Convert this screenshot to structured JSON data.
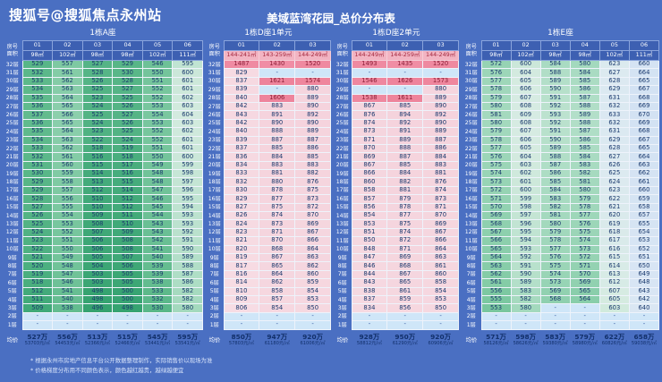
{
  "page": {
    "brand": "搜狐号@搜狐焦点永州站",
    "title": "美域蓝湾花园_总价分布表"
  },
  "notes": [
    "* 根据永州市房地产信息平台公开数据整理制作，实际销售价以现场为准",
    "* 价格梯度分布用不同颜色表示，颜色越红越贵，越绿越便宜"
  ],
  "shared": {
    "corner_top": "房号",
    "corner_bottom": "面积",
    "avg_label": "均价",
    "unit_note": "单位：万元",
    "floors": [
      "32层",
      "31层",
      "30层",
      "29层",
      "28层",
      "27层",
      "26层",
      "25层",
      "24层",
      "23层",
      "22层",
      "21层",
      "20层",
      "19层",
      "18层",
      "17层",
      "16层",
      "15层",
      "14层",
      "13层",
      "12层",
      "11层",
      "10层",
      "9层",
      "8层",
      "7层",
      "6层",
      "5层",
      "4层",
      "3层",
      "2层",
      "1层"
    ]
  },
  "style": {
    "page_bg": "#4a6fc2",
    "header_bg": "#3d60b2",
    "dash_bg": "#cfe6f8",
    "navy_text": "#1b3a6e",
    "red_text": "#8c2038",
    "red_text_min": 1400,
    "area_pink_bg": "#f2b4c2",
    "area_pink_text": "#a3273f",
    "color_scale": [
      [
        490,
        "#2f9f6b"
      ],
      [
        515,
        "#46ac7c"
      ],
      [
        535,
        "#5fba8c"
      ],
      [
        560,
        "#82cba5"
      ],
      [
        585,
        "#abdcc3"
      ],
      [
        605,
        "#d5ebe0"
      ],
      [
        625,
        "#dceaf0"
      ],
      [
        645,
        "#d9e6f4"
      ],
      [
        680,
        "#d0e0f2"
      ],
      [
        800,
        "#f7dde4"
      ],
      [
        960,
        "#f3ccd7"
      ],
      [
        1420,
        "#f08ea5"
      ],
      [
        1660,
        "#ee8199"
      ]
    ]
  },
  "chart_data": [
    {
      "type": "table",
      "title": "1栋A座",
      "area_pink": false,
      "columns": [
        [
          "01",
          "98㎡"
        ],
        [
          "02",
          "102㎡"
        ],
        [
          "03",
          "98㎡"
        ],
        [
          "04",
          "98㎡"
        ],
        [
          "05",
          "102㎡"
        ],
        [
          "06",
          "111㎡"
        ]
      ],
      "rows": [
        [
          "529",
          "557",
          "527",
          "529",
          "546",
          "595"
        ],
        [
          "532",
          "561",
          "528",
          "530",
          "550",
          "600"
        ],
        [
          "533",
          "562",
          "526",
          "528",
          "551",
          "601"
        ],
        [
          "534",
          "563",
          "525",
          "527",
          "552",
          "601"
        ],
        [
          "535",
          "564",
          "523",
          "525",
          "552",
          "602"
        ],
        [
          "536",
          "565",
          "524",
          "526",
          "553",
          "603"
        ],
        [
          "537",
          "566",
          "525",
          "527",
          "554",
          "604"
        ],
        [
          "536",
          "565",
          "524",
          "526",
          "553",
          "603"
        ],
        [
          "535",
          "564",
          "523",
          "525",
          "552",
          "602"
        ],
        [
          "534",
          "563",
          "522",
          "524",
          "552",
          "601"
        ],
        [
          "533",
          "562",
          "518",
          "519",
          "551",
          "601"
        ],
        [
          "532",
          "561",
          "516",
          "518",
          "550",
          "600"
        ],
        [
          "531",
          "560",
          "515",
          "517",
          "549",
          "599"
        ],
        [
          "530",
          "559",
          "514",
          "516",
          "548",
          "598"
        ],
        [
          "529",
          "558",
          "513",
          "515",
          "548",
          "597"
        ],
        [
          "529",
          "557",
          "512",
          "514",
          "547",
          "596"
        ],
        [
          "528",
          "556",
          "510",
          "512",
          "546",
          "595"
        ],
        [
          "527",
          "555",
          "510",
          "512",
          "545",
          "594"
        ],
        [
          "526",
          "554",
          "509",
          "511",
          "544",
          "593"
        ],
        [
          "525",
          "553",
          "508",
          "510",
          "543",
          "593"
        ],
        [
          "524",
          "552",
          "507",
          "509",
          "543",
          "592"
        ],
        [
          "523",
          "551",
          "506",
          "508",
          "542",
          "591"
        ],
        [
          "522",
          "550",
          "506",
          "508",
          "541",
          "590"
        ],
        [
          "521",
          "549",
          "505",
          "507",
          "540",
          "589"
        ],
        [
          "520",
          "548",
          "504",
          "506",
          "539",
          "588"
        ],
        [
          "519",
          "547",
          "503",
          "505",
          "539",
          "587"
        ],
        [
          "518",
          "546",
          "503",
          "505",
          "538",
          "586"
        ],
        [
          "512",
          "541",
          "498",
          "500",
          "533",
          "582"
        ],
        [
          "511",
          "540",
          "498",
          "500",
          "532",
          "582"
        ],
        [
          "509",
          "538",
          "496",
          "498",
          "530",
          "580"
        ],
        [
          "-",
          "-",
          "-",
          "-",
          "-",
          "-"
        ],
        [
          "-",
          "-",
          "-",
          "-",
          "-",
          "-"
        ]
      ],
      "avg": [
        [
          "527万",
          "53703元/㎡"
        ],
        [
          "556万",
          "54453元/㎡"
        ],
        [
          "513万",
          "52366元/㎡"
        ],
        [
          "515万",
          "52466元/㎡"
        ],
        [
          "545万",
          "53441元/㎡"
        ],
        [
          "595万",
          "53541元/㎡"
        ]
      ]
    },
    {
      "type": "table",
      "title": "1栋D座1单元",
      "area_pink": true,
      "columns": [
        [
          "01",
          "144-241㎡"
        ],
        [
          "02",
          "143-259㎡"
        ],
        [
          "03",
          "144-249㎡"
        ]
      ],
      "rows": [
        [
          "1487",
          "1430",
          "1520"
        ],
        [
          "829",
          "-",
          "-"
        ],
        [
          "837",
          "1621",
          "1574"
        ],
        [
          "839",
          "-",
          "880"
        ],
        [
          "840",
          "1606",
          "889"
        ],
        [
          "842",
          "883",
          "890"
        ],
        [
          "843",
          "891",
          "892"
        ],
        [
          "842",
          "890",
          "890"
        ],
        [
          "840",
          "888",
          "889"
        ],
        [
          "839",
          "887",
          "887"
        ],
        [
          "837",
          "885",
          "886"
        ],
        [
          "836",
          "884",
          "885"
        ],
        [
          "834",
          "883",
          "883"
        ],
        [
          "833",
          "881",
          "882"
        ],
        [
          "832",
          "880",
          "876"
        ],
        [
          "830",
          "878",
          "875"
        ],
        [
          "829",
          "877",
          "873"
        ],
        [
          "827",
          "875",
          "872"
        ],
        [
          "826",
          "874",
          "870"
        ],
        [
          "824",
          "873",
          "869"
        ],
        [
          "823",
          "871",
          "867"
        ],
        [
          "821",
          "870",
          "866"
        ],
        [
          "820",
          "868",
          "864"
        ],
        [
          "819",
          "867",
          "863"
        ],
        [
          "817",
          "865",
          "862"
        ],
        [
          "816",
          "864",
          "860"
        ],
        [
          "814",
          "862",
          "859"
        ],
        [
          "810",
          "858",
          "854"
        ],
        [
          "809",
          "857",
          "853"
        ],
        [
          "806",
          "854",
          "850"
        ],
        [
          "-",
          "-",
          "-"
        ],
        [
          "-",
          "-",
          "-"
        ]
      ],
      "avg": [
        [
          "850万",
          "57803元/㎡"
        ],
        [
          "947万",
          "61180元/㎡"
        ],
        [
          "920万",
          "61006元/㎡"
        ]
      ]
    },
    {
      "type": "table",
      "title": "1栋D座2单元",
      "area_pink": true,
      "columns": [
        [
          "01",
          "144-249㎡"
        ],
        [
          "02",
          "144-259㎡"
        ],
        [
          "03",
          "144-249㎡"
        ]
      ],
      "rows": [
        [
          "1493",
          "1435",
          "1520"
        ],
        [
          "-",
          "-",
          "-"
        ],
        [
          "1546",
          "1626",
          "1573"
        ],
        [
          "-",
          "-",
          "880"
        ],
        [
          "1538",
          "1611",
          "889"
        ],
        [
          "867",
          "885",
          "890"
        ],
        [
          "876",
          "894",
          "892"
        ],
        [
          "874",
          "892",
          "890"
        ],
        [
          "873",
          "891",
          "889"
        ],
        [
          "871",
          "889",
          "887"
        ],
        [
          "870",
          "888",
          "886"
        ],
        [
          "869",
          "887",
          "884"
        ],
        [
          "867",
          "885",
          "883"
        ],
        [
          "866",
          "884",
          "881"
        ],
        [
          "860",
          "882",
          "876"
        ],
        [
          "858",
          "881",
          "874"
        ],
        [
          "857",
          "879",
          "873"
        ],
        [
          "856",
          "878",
          "871"
        ],
        [
          "854",
          "877",
          "870"
        ],
        [
          "853",
          "875",
          "869"
        ],
        [
          "851",
          "874",
          "867"
        ],
        [
          "850",
          "872",
          "866"
        ],
        [
          "848",
          "871",
          "864"
        ],
        [
          "847",
          "869",
          "863"
        ],
        [
          "846",
          "868",
          "861"
        ],
        [
          "844",
          "867",
          "860"
        ],
        [
          "843",
          "865",
          "858"
        ],
        [
          "838",
          "861",
          "854"
        ],
        [
          "837",
          "859",
          "853"
        ],
        [
          "834",
          "856",
          "850"
        ],
        [
          "-",
          "-",
          "-"
        ],
        [
          "-",
          "-",
          "-"
        ]
      ],
      "avg": [
        [
          "928万",
          "58812元/㎡"
        ],
        [
          "950万",
          "61290元/㎡"
        ],
        [
          "920万",
          "60906元/㎡"
        ]
      ]
    },
    {
      "type": "table",
      "title": "1栋E座",
      "area_pink": false,
      "columns": [
        [
          "01",
          "98㎡"
        ],
        [
          "02",
          "102㎡"
        ],
        [
          "03",
          "98㎡"
        ],
        [
          "04",
          "98㎡"
        ],
        [
          "05",
          "102㎡"
        ],
        [
          "06",
          "111㎡"
        ]
      ],
      "rows": [
        [
          "572",
          "600",
          "584",
          "580",
          "623",
          "660"
        ],
        [
          "576",
          "604",
          "588",
          "584",
          "627",
          "664"
        ],
        [
          "577",
          "605",
          "589",
          "585",
          "628",
          "665"
        ],
        [
          "578",
          "606",
          "590",
          "586",
          "629",
          "667"
        ],
        [
          "579",
          "607",
          "591",
          "587",
          "631",
          "668"
        ],
        [
          "580",
          "608",
          "592",
          "588",
          "632",
          "669"
        ],
        [
          "581",
          "609",
          "593",
          "589",
          "633",
          "670"
        ],
        [
          "580",
          "608",
          "592",
          "588",
          "632",
          "669"
        ],
        [
          "579",
          "607",
          "591",
          "587",
          "631",
          "668"
        ],
        [
          "578",
          "606",
          "590",
          "586",
          "629",
          "667"
        ],
        [
          "577",
          "605",
          "589",
          "585",
          "628",
          "665"
        ],
        [
          "576",
          "604",
          "588",
          "584",
          "627",
          "664"
        ],
        [
          "575",
          "603",
          "587",
          "583",
          "626",
          "663"
        ],
        [
          "574",
          "602",
          "586",
          "582",
          "625",
          "662"
        ],
        [
          "573",
          "601",
          "585",
          "581",
          "624",
          "661"
        ],
        [
          "572",
          "600",
          "584",
          "580",
          "623",
          "660"
        ],
        [
          "571",
          "599",
          "583",
          "579",
          "622",
          "659"
        ],
        [
          "570",
          "598",
          "582",
          "578",
          "621",
          "658"
        ],
        [
          "569",
          "597",
          "581",
          "577",
          "620",
          "657"
        ],
        [
          "568",
          "596",
          "580",
          "576",
          "619",
          "655"
        ],
        [
          "567",
          "595",
          "579",
          "575",
          "618",
          "654"
        ],
        [
          "566",
          "594",
          "578",
          "574",
          "617",
          "653"
        ],
        [
          "565",
          "593",
          "577",
          "573",
          "616",
          "652"
        ],
        [
          "564",
          "592",
          "576",
          "572",
          "615",
          "651"
        ],
        [
          "563",
          "591",
          "575",
          "571",
          "614",
          "650"
        ],
        [
          "562",
          "590",
          "574",
          "570",
          "613",
          "649"
        ],
        [
          "561",
          "589",
          "573",
          "569",
          "612",
          "648"
        ],
        [
          "556",
          "583",
          "569",
          "565",
          "607",
          "643"
        ],
        [
          "555",
          "582",
          "568",
          "564",
          "605",
          "642"
        ],
        [
          "553",
          "580",
          "-",
          "-",
          "603",
          "640"
        ],
        [
          "-",
          "-",
          "-",
          "-",
          "-",
          "-"
        ],
        [
          "-",
          "-",
          "-",
          "-",
          "-",
          "-"
        ]
      ],
      "avg": [
        [
          "571万",
          "58126元/㎡"
        ],
        [
          "598万",
          "58626元/㎡"
        ],
        [
          "583万",
          "59380元/㎡"
        ],
        [
          "579万",
          "58980元/㎡"
        ],
        [
          "622万",
          "60826元/㎡"
        ],
        [
          "658万",
          "59038元/㎡"
        ]
      ]
    }
  ]
}
